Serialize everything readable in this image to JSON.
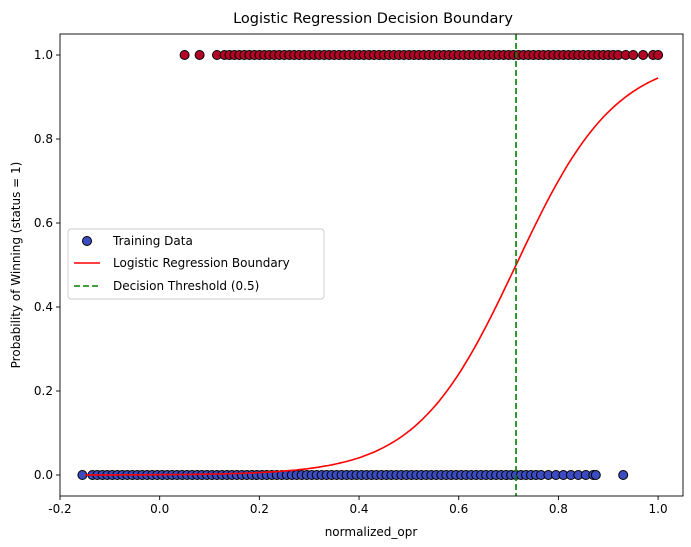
{
  "chart_data": {
    "type": "scatter",
    "title": "Logistic Regression Decision Boundary",
    "xlabel": "normalized_opr",
    "ylabel": "Probability of Winning (status = 1)",
    "xlim": [
      -0.2,
      1.05
    ],
    "ylim": [
      -0.05,
      1.05
    ],
    "xticks": [
      "-0.2",
      "0.0",
      "0.2",
      "0.4",
      "0.6",
      "0.8",
      "1.0"
    ],
    "xtick_values": [
      -0.2,
      0.0,
      0.2,
      0.4,
      0.6,
      0.8,
      1.0
    ],
    "yticks": [
      "0.0",
      "0.2",
      "0.4",
      "0.6",
      "0.8",
      "1.0"
    ],
    "ytick_values": [
      0.0,
      0.2,
      0.4,
      0.6,
      0.8,
      1.0
    ],
    "grid": false,
    "legend_position": "center-left",
    "legend": [
      {
        "label": "Training Data",
        "kind": "marker",
        "color": "#3b4cc0"
      },
      {
        "label": "Logistic Regression Boundary",
        "kind": "line",
        "color": "#ff0000"
      },
      {
        "label": "Decision Threshold (0.5)",
        "kind": "dashed",
        "color": "#008000"
      }
    ],
    "series": [
      {
        "name": "Training Data",
        "class": "status 0",
        "color": "#3b4cc0",
        "y": 0,
        "x": [
          -0.155,
          -0.135,
          -0.125,
          -0.115,
          -0.105,
          -0.095,
          -0.085,
          -0.075,
          -0.065,
          -0.055,
          -0.045,
          -0.035,
          -0.025,
          -0.015,
          -0.005,
          0.005,
          0.015,
          0.025,
          0.035,
          0.045,
          0.055,
          0.065,
          0.075,
          0.085,
          0.095,
          0.105,
          0.115,
          0.125,
          0.135,
          0.145,
          0.155,
          0.165,
          0.175,
          0.185,
          0.195,
          0.205,
          0.215,
          0.225,
          0.235,
          0.245,
          0.255,
          0.265,
          0.275,
          0.285,
          0.295,
          0.305,
          0.315,
          0.325,
          0.335,
          0.345,
          0.355,
          0.365,
          0.375,
          0.385,
          0.395,
          0.405,
          0.415,
          0.425,
          0.435,
          0.445,
          0.455,
          0.465,
          0.475,
          0.485,
          0.495,
          0.505,
          0.515,
          0.525,
          0.535,
          0.545,
          0.555,
          0.565,
          0.575,
          0.585,
          0.595,
          0.605,
          0.615,
          0.625,
          0.635,
          0.645,
          0.655,
          0.665,
          0.675,
          0.685,
          0.695,
          0.705,
          0.715,
          0.725,
          0.735,
          0.745,
          0.755,
          0.765,
          0.78,
          0.795,
          0.81,
          0.825,
          0.84,
          0.855,
          0.87,
          0.875,
          0.93
        ]
      },
      {
        "name": "Training Data",
        "class": "status 1",
        "color": "#b40426",
        "y": 1,
        "x": [
          0.05,
          0.08,
          0.115,
          0.13,
          0.14,
          0.15,
          0.16,
          0.17,
          0.18,
          0.19,
          0.2,
          0.21,
          0.22,
          0.23,
          0.24,
          0.25,
          0.26,
          0.27,
          0.28,
          0.29,
          0.3,
          0.31,
          0.32,
          0.33,
          0.34,
          0.35,
          0.36,
          0.37,
          0.38,
          0.39,
          0.4,
          0.41,
          0.42,
          0.43,
          0.44,
          0.45,
          0.46,
          0.47,
          0.48,
          0.49,
          0.5,
          0.51,
          0.52,
          0.53,
          0.54,
          0.55,
          0.56,
          0.57,
          0.58,
          0.59,
          0.6,
          0.61,
          0.62,
          0.63,
          0.64,
          0.65,
          0.66,
          0.67,
          0.68,
          0.69,
          0.7,
          0.71,
          0.72,
          0.73,
          0.74,
          0.75,
          0.76,
          0.77,
          0.78,
          0.79,
          0.8,
          0.81,
          0.82,
          0.83,
          0.84,
          0.85,
          0.86,
          0.87,
          0.88,
          0.89,
          0.9,
          0.91,
          0.92,
          0.935,
          0.95,
          0.97,
          0.99,
          1.0
        ]
      },
      {
        "name": "Logistic Regression Boundary",
        "kind": "curve",
        "color": "#ff0000",
        "x_range": [
          -0.15,
          1.0
        ],
        "midpoint": 0.715,
        "slope": 10.0
      },
      {
        "name": "Decision Threshold (0.5)",
        "kind": "vline",
        "color": "#008000",
        "x": 0.715
      }
    ]
  }
}
